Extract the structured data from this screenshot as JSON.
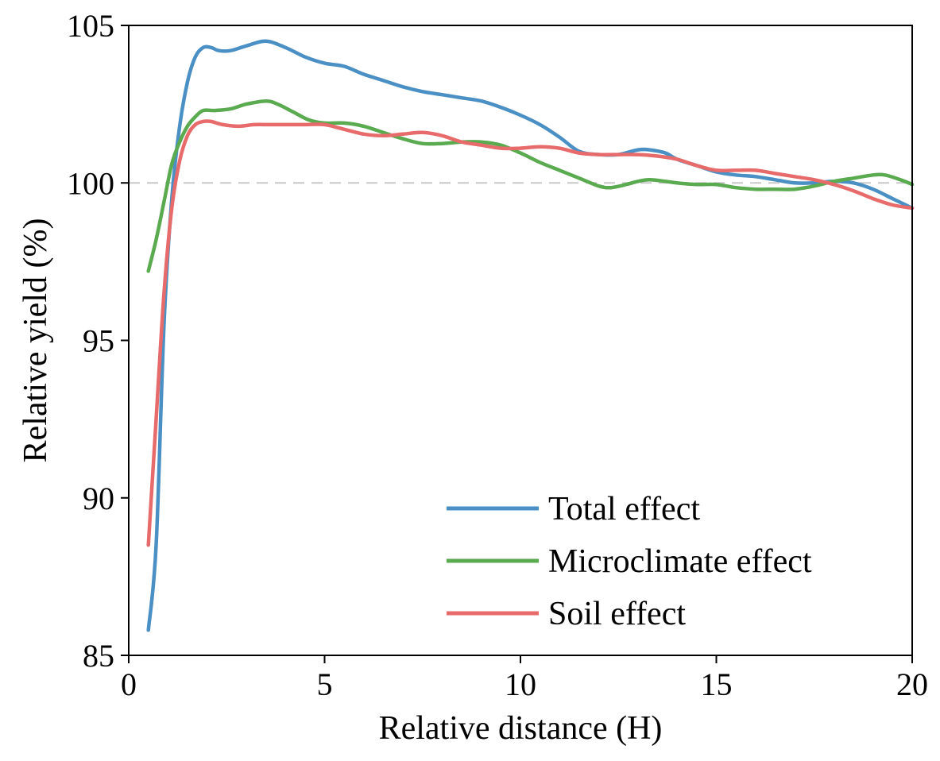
{
  "chart_data": {
    "type": "line",
    "xlabel": "Relative distance (H)",
    "ylabel": "Relative yield (%)",
    "xlim": [
      0,
      20
    ],
    "ylim": [
      85,
      105
    ],
    "xticks": [
      0,
      5,
      10,
      15,
      20
    ],
    "yticks": [
      85,
      90,
      95,
      100,
      105
    ],
    "reference_line": {
      "y": 100,
      "style": "dashed",
      "color": "#c8c8c8"
    },
    "grid": false,
    "legend_position": "bottom-right",
    "series": [
      {
        "name": "Total effect",
        "color": "#4a90c4",
        "x": [
          0.5,
          0.7,
          0.9,
          1.1,
          1.3,
          1.5,
          1.7,
          1.9,
          2.1,
          2.3,
          2.6,
          3.0,
          3.5,
          4.0,
          4.5,
          5.0,
          5.5,
          6.0,
          6.5,
          7.0,
          7.5,
          8.0,
          8.5,
          9.0,
          9.5,
          10.0,
          10.5,
          11.0,
          11.5,
          12.0,
          12.5,
          13.0,
          13.3,
          13.7,
          14.0,
          14.5,
          15.0,
          15.5,
          16.0,
          16.5,
          17.0,
          17.5,
          18.0,
          18.5,
          19.0,
          19.5,
          20.0
        ],
        "y": [
          85.8,
          88.5,
          95.5,
          99.5,
          101.8,
          103.2,
          104.0,
          104.3,
          104.3,
          104.2,
          104.2,
          104.35,
          104.5,
          104.3,
          104.0,
          103.8,
          103.7,
          103.45,
          103.25,
          103.05,
          102.9,
          102.8,
          102.7,
          102.6,
          102.4,
          102.15,
          101.85,
          101.45,
          101.0,
          100.9,
          100.9,
          101.05,
          101.05,
          100.95,
          100.75,
          100.55,
          100.35,
          100.25,
          100.2,
          100.1,
          100.0,
          100.0,
          100.05,
          100.0,
          99.8,
          99.5,
          99.2
        ]
      },
      {
        "name": "Microclimate effect",
        "color": "#5aaa50",
        "x": [
          0.5,
          0.7,
          0.9,
          1.1,
          1.3,
          1.5,
          1.7,
          1.9,
          2.2,
          2.6,
          3.0,
          3.5,
          3.8,
          4.2,
          4.6,
          5.0,
          5.5,
          6.0,
          6.5,
          7.0,
          7.5,
          8.0,
          8.5,
          9.0,
          9.5,
          10.0,
          10.5,
          11.0,
          11.5,
          12.0,
          12.3,
          12.7,
          13.0,
          13.3,
          13.7,
          14.0,
          14.5,
          15.0,
          15.5,
          16.0,
          16.5,
          17.0,
          17.5,
          18.0,
          18.5,
          19.0,
          19.3,
          19.7,
          20.0
        ],
        "y": [
          97.2,
          98.2,
          99.4,
          100.6,
          101.3,
          101.8,
          102.1,
          102.3,
          102.3,
          102.35,
          102.5,
          102.6,
          102.5,
          102.25,
          102.0,
          101.9,
          101.9,
          101.8,
          101.6,
          101.4,
          101.25,
          101.25,
          101.3,
          101.3,
          101.2,
          100.95,
          100.65,
          100.4,
          100.15,
          99.9,
          99.85,
          99.95,
          100.05,
          100.1,
          100.05,
          100.0,
          99.95,
          99.95,
          99.85,
          99.8,
          99.8,
          99.8,
          99.9,
          100.05,
          100.15,
          100.25,
          100.25,
          100.1,
          99.95
        ]
      },
      {
        "name": "Soil effect",
        "color": "#e86b6b",
        "x": [
          0.5,
          0.7,
          0.9,
          1.1,
          1.3,
          1.5,
          1.7,
          1.9,
          2.1,
          2.4,
          2.8,
          3.2,
          3.6,
          4.0,
          4.5,
          5.0,
          5.5,
          6.0,
          6.5,
          7.0,
          7.5,
          8.0,
          8.5,
          9.0,
          9.5,
          10.0,
          10.5,
          11.0,
          11.5,
          12.0,
          12.5,
          13.0,
          13.5,
          14.0,
          14.5,
          15.0,
          15.5,
          16.0,
          16.5,
          17.0,
          17.5,
          18.0,
          18.5,
          19.0,
          19.5,
          20.0
        ],
        "y": [
          88.5,
          92.5,
          96.5,
          99.2,
          100.7,
          101.5,
          101.85,
          101.95,
          101.95,
          101.85,
          101.8,
          101.85,
          101.85,
          101.85,
          101.85,
          101.85,
          101.7,
          101.55,
          101.5,
          101.55,
          101.6,
          101.5,
          101.3,
          101.2,
          101.1,
          101.1,
          101.15,
          101.1,
          100.95,
          100.9,
          100.9,
          100.9,
          100.85,
          100.75,
          100.55,
          100.4,
          100.4,
          100.4,
          100.3,
          100.2,
          100.1,
          99.95,
          99.75,
          99.5,
          99.3,
          99.2
        ]
      }
    ]
  }
}
